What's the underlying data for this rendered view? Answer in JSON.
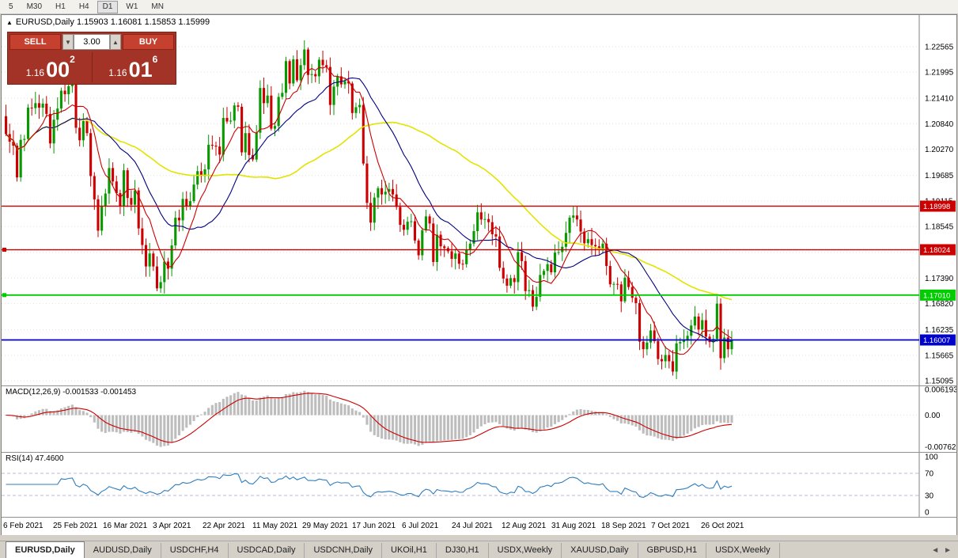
{
  "colors": {
    "bull": "#089800",
    "bear": "#CC0000",
    "ma_fast": "#CC0000",
    "ma_mid": "#000080",
    "ma_slow": "#E3E300",
    "macd_hist": "#BDBDBD",
    "macd_signal": "#CC0000",
    "rsi_line": "#2E7DBE",
    "grid": "#E0E0E0"
  },
  "toolbar": {
    "timeframes": [
      "5",
      "M30",
      "H1",
      "H4",
      "D1",
      "W1",
      "MN"
    ],
    "active": "D1"
  },
  "window": {
    "symbol": "EURUSD,Daily",
    "ohlc": "1.15903 1.16081 1.15853 1.15999"
  },
  "trade_panel": {
    "sell_label": "SELL",
    "buy_label": "BUY",
    "volume": "3.00",
    "sell_price": {
      "prefix": "1.16",
      "big": "00",
      "sup": "2"
    },
    "buy_price": {
      "prefix": "1.16",
      "big": "01",
      "sup": "6"
    }
  },
  "price_axis": [
    "1.22565",
    "1.21995",
    "1.21410",
    "1.20840",
    "1.20270",
    "1.19685",
    "1.19115",
    "1.18545",
    "1.17960",
    "1.17390",
    "1.16820",
    "1.16235",
    "1.15665",
    "1.15095"
  ],
  "levels": [
    {
      "label": "1.18998",
      "price": 1.18998,
      "color": "#CC0000",
      "width": 1.4,
      "handle": false
    },
    {
      "label": "1.18024",
      "price": 1.18024,
      "color": "#CC0000",
      "width": 1.4,
      "handle": true
    },
    {
      "label": "1.17010",
      "price": 1.1701,
      "color": "#00CC00",
      "width": 1.8,
      "handle": true
    },
    {
      "label": "1.16007",
      "price": 1.16007,
      "color": "#0000CC",
      "width": 1.8,
      "handle": false
    }
  ],
  "macd_panel": {
    "label": "MACD(12,26,9) -0.001533 -0.001453",
    "axis": [
      "0.006193",
      "0.00",
      "-0.007621"
    ],
    "ylim": [
      -0.0089,
      0.007
    ]
  },
  "rsi_panel": {
    "label": "RSI(14) 47.4600",
    "axis": [
      "100",
      "70",
      "30",
      "0"
    ],
    "levels": [
      70,
      30
    ]
  },
  "date_axis": [
    "6 Feb 2021",
    "25 Feb 2021",
    "16 Mar 2021",
    "3 Apr 2021",
    "22 Apr 2021",
    "11 May 2021",
    "29 May 2021",
    "17 Jun 2021",
    "6 Jul 2021",
    "24 Jul 2021",
    "12 Aug 2021",
    "31 Aug 2021",
    "18 Sep 2021",
    "7 Oct 2021",
    "26 Oct 2021"
  ],
  "tabs": {
    "items": [
      "EURUSD,Daily",
      "AUDUSD,Daily",
      "USDCHF,H4",
      "USDCAD,Daily",
      "USDCNH,Daily",
      "UKOil,H1",
      "DJ30,H1",
      "USDX,Weekly",
      "XAUUSD,Daily",
      "GBPUSD,H1",
      "USDX,Weekly"
    ],
    "active_index": 0,
    "scroll_left_icon": "◄",
    "scroll_right_icon": "►"
  },
  "chart_data": {
    "type": "candlestick",
    "symbol": "EURUSD",
    "timeframe": "Daily",
    "title": "EURUSD,Daily 1.15903 1.16081 1.15853 1.15999",
    "ylim": [
      1.1499,
      1.2327
    ],
    "current_ohlc": {
      "open": 1.15903,
      "high": 1.16081,
      "low": 1.15853,
      "close": 1.15999
    },
    "overlays": [
      "SMA fast (red)",
      "SMA mid (navy)",
      "SMA slow (yellow)"
    ],
    "closes": [
      1.2061,
      1.2044,
      1.2035,
      1.1964,
      1.2048,
      1.205,
      1.212,
      1.2119,
      1.213,
      1.212,
      1.2129,
      1.2106,
      1.204,
      1.2093,
      1.2118,
      1.2158,
      1.215,
      1.2168,
      1.2175,
      1.2075,
      1.2047,
      1.209,
      1.2063,
      1.1967,
      1.1915,
      1.1845,
      1.19,
      1.1928,
      1.1985,
      1.1955,
      1.1929,
      1.19,
      1.198,
      1.1918,
      1.1903,
      1.1935,
      1.185,
      1.1813,
      1.1765,
      1.1794,
      1.1765,
      1.1716,
      1.173,
      1.1776,
      1.176,
      1.1812,
      1.1874,
      1.1868,
      1.1916,
      1.1899,
      1.1911,
      1.1948,
      1.1978,
      1.1967,
      1.1982,
      1.2037,
      1.2035,
      1.2033,
      1.2015,
      1.2097,
      1.2089,
      1.2091,
      1.2125,
      1.2122,
      1.202,
      1.2063,
      1.2014,
      1.2004,
      1.2064,
      1.2164,
      1.213,
      1.2147,
      1.2073,
      1.2079,
      1.2144,
      1.2153,
      1.2224,
      1.2174,
      1.2228,
      1.2181,
      1.2215,
      1.225,
      1.2193,
      1.2195,
      1.219,
      1.2227,
      1.2215,
      1.2211,
      1.2126,
      1.2167,
      1.219,
      1.2172,
      1.2179,
      1.2174,
      1.2108,
      1.2121,
      1.2126,
      1.1995,
      1.1907,
      1.1863,
      1.1919,
      1.194,
      1.1926,
      1.1932,
      1.1938,
      1.1926,
      1.1898,
      1.1858,
      1.1847,
      1.1865,
      1.1866,
      1.1823,
      1.179,
      1.1846,
      1.1877,
      1.1861,
      1.1775,
      1.1836,
      1.181,
      1.1806,
      1.1799,
      1.1782,
      1.1794,
      1.1771,
      1.177,
      1.1803,
      1.1816,
      1.1844,
      1.1886,
      1.187,
      1.1871,
      1.1864,
      1.1837,
      1.1832,
      1.1762,
      1.1738,
      1.1722,
      1.1739,
      1.173,
      1.1797,
      1.1777,
      1.171,
      1.1712,
      1.1675,
      1.1697,
      1.1746,
      1.1755,
      1.177,
      1.1752,
      1.1796,
      1.1797,
      1.1809,
      1.184,
      1.1874,
      1.1879,
      1.187,
      1.1843,
      1.1817,
      1.1826,
      1.1813,
      1.181,
      1.1804,
      1.1816,
      1.1766,
      1.1725,
      1.1726,
      1.1725,
      1.1687,
      1.174,
      1.1719,
      1.1695,
      1.1683,
      1.1597,
      1.158,
      1.1595,
      1.1622,
      1.1598,
      1.1558,
      1.1553,
      1.1567,
      1.1553,
      1.153,
      1.1593,
      1.1596,
      1.1601,
      1.161,
      1.1633,
      1.1653,
      1.1624,
      1.1645,
      1.1608,
      1.1596,
      1.1603,
      1.1682,
      1.156,
      1.1606,
      1.158,
      1.15999
    ]
  }
}
